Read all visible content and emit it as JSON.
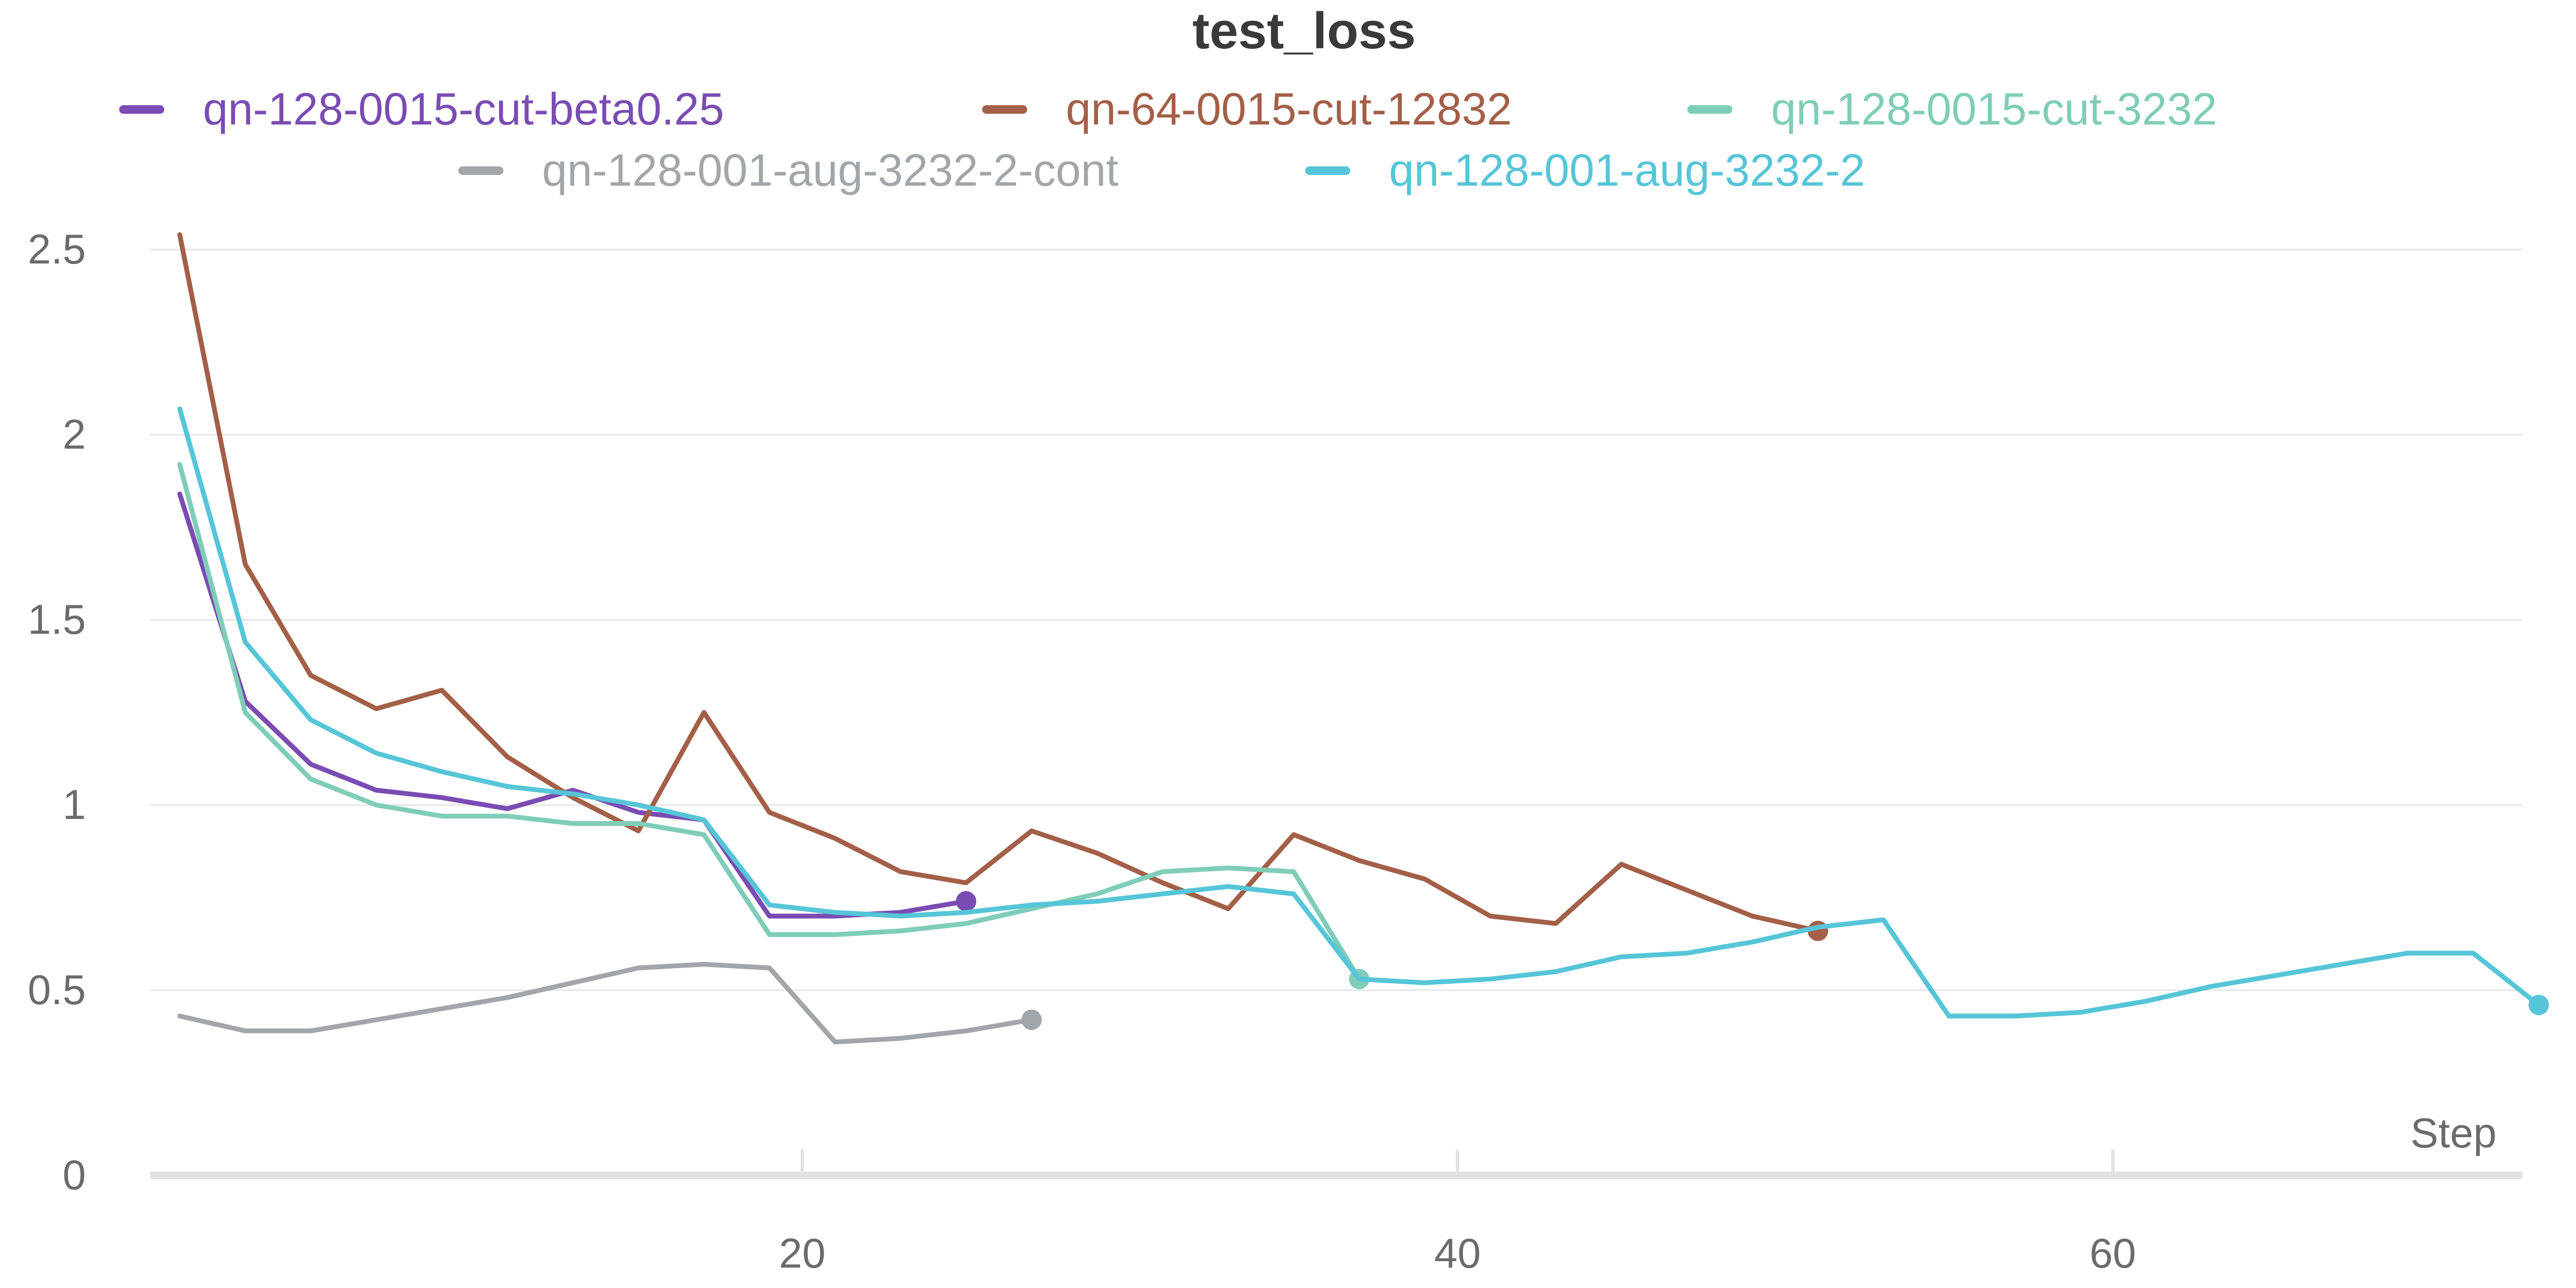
{
  "chart_data": {
    "type": "line",
    "title": "test_loss",
    "xlabel": "Step",
    "ylabel": "",
    "xlim": [
      0.1,
      72.5
    ],
    "ylim": [
      0,
      2.5
    ],
    "x_ticks": [
      20,
      40,
      60
    ],
    "y_ticks": [
      0,
      0.5,
      1,
      1.5,
      2,
      2.5
    ],
    "y_tick_labels": [
      "0",
      "0.5",
      "1",
      "1.5",
      "2",
      "2.5"
    ],
    "grid": true,
    "legend_position": "top",
    "series": [
      {
        "name": "qn-128-0015-cut-beta0.25",
        "color": "#7a4cb3",
        "x": [
          1,
          3,
          5,
          7,
          9,
          11,
          13,
          15,
          17,
          19,
          21,
          23,
          25
        ],
        "y": [
          1.84,
          1.28,
          1.11,
          1.04,
          1.02,
          0.99,
          1.04,
          0.98,
          0.96,
          0.7,
          0.7,
          0.71,
          0.74
        ]
      },
      {
        "name": "qn-64-0015-cut-12832",
        "color": "#a35f47",
        "x": [
          1,
          3,
          5,
          7,
          9,
          11,
          13,
          15,
          17,
          19,
          21,
          23,
          25,
          27,
          29,
          31,
          33,
          35,
          37,
          39,
          41,
          43,
          45,
          47,
          49,
          51
        ],
        "y": [
          2.54,
          1.65,
          1.35,
          1.26,
          1.31,
          1.13,
          1.02,
          0.93,
          1.25,
          0.98,
          0.91,
          0.82,
          0.79,
          0.93,
          0.87,
          0.79,
          0.72,
          0.92,
          0.85,
          0.8,
          0.7,
          0.68,
          0.84,
          0.77,
          0.7,
          0.66
        ]
      },
      {
        "name": "qn-128-0015-cut-3232",
        "color": "#7fcdb8",
        "x": [
          1,
          3,
          5,
          7,
          9,
          11,
          13,
          15,
          17,
          19,
          21,
          23,
          25,
          27,
          29,
          31,
          33,
          35,
          37
        ],
        "y": [
          1.92,
          1.25,
          1.07,
          1.0,
          0.97,
          0.97,
          0.95,
          0.95,
          0.92,
          0.65,
          0.65,
          0.66,
          0.68,
          0.72,
          0.76,
          0.82,
          0.83,
          0.82,
          0.53
        ]
      },
      {
        "name": "qn-128-001-aug-3232-2-cont",
        "color": "#a2a6a9",
        "x": [
          1,
          3,
          5,
          7,
          9,
          11,
          13,
          15,
          17,
          19,
          21,
          23,
          25,
          27
        ],
        "y": [
          0.43,
          0.39,
          0.39,
          0.42,
          0.45,
          0.48,
          0.52,
          0.56,
          0.57,
          0.56,
          0.36,
          0.37,
          0.39,
          0.42
        ]
      },
      {
        "name": "qn-128-001-aug-3232-2",
        "color": "#56c5d8",
        "x": [
          1,
          3,
          5,
          7,
          9,
          11,
          13,
          15,
          17,
          19,
          21,
          23,
          25,
          27,
          29,
          31,
          33,
          35,
          37,
          39,
          41,
          43,
          45,
          47,
          49,
          51,
          53,
          55,
          57,
          59,
          61,
          63,
          65,
          67,
          69,
          71,
          73
        ],
        "y": [
          2.07,
          1.44,
          1.23,
          1.14,
          1.09,
          1.05,
          1.03,
          1.0,
          0.96,
          0.73,
          0.71,
          0.7,
          0.71,
          0.73,
          0.74,
          0.76,
          0.78,
          0.76,
          0.53,
          0.52,
          0.53,
          0.55,
          0.59,
          0.6,
          0.63,
          0.67,
          0.69,
          0.43,
          0.43,
          0.44,
          0.47,
          0.51,
          0.54,
          0.57,
          0.6,
          0.6,
          0.46
        ]
      }
    ]
  }
}
